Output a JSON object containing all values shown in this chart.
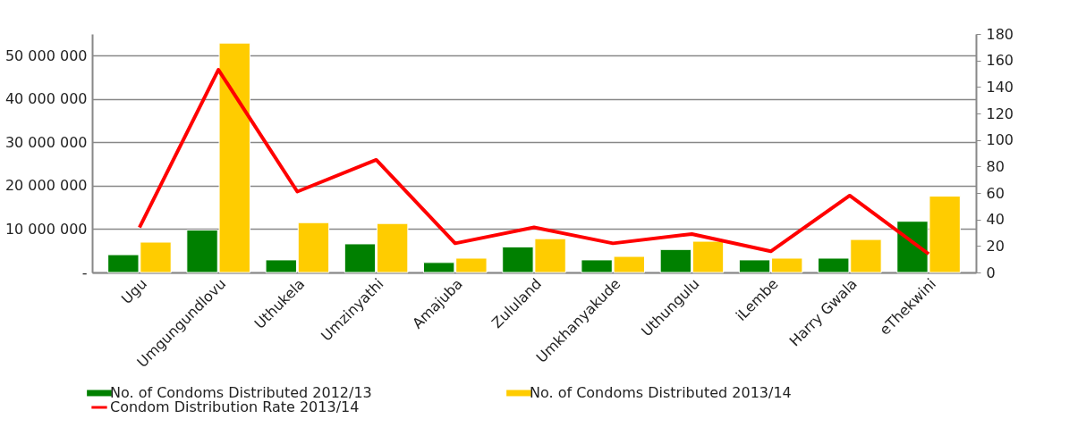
{
  "chart_data": {
    "type": "bar",
    "categories": [
      "Ugu",
      "Umgungundlovu",
      "Uthukela",
      "Umzinyathi",
      "Amajuba",
      "Zululand",
      "Umkhanyakude",
      "Uthungulu",
      "iLembe",
      "Harry Gwala",
      "eThekwini"
    ],
    "series": [
      {
        "name": "No. of Condoms Distributed 2012/13",
        "color": "#008000",
        "values": [
          4100000,
          9800000,
          2900000,
          6600000,
          2300000,
          5900000,
          2900000,
          5300000,
          2900000,
          3300000,
          11800000
        ]
      },
      {
        "name": "No. of Condoms Distributed 2013/14",
        "color": "#ffcc00",
        "values": [
          7000000,
          52900000,
          11500000,
          11300000,
          3300000,
          7800000,
          3700000,
          7200000,
          3300000,
          7600000,
          17600000
        ]
      },
      {
        "name": "Condom Distribution Rate 2013/14",
        "color": "#ff0000",
        "type": "line",
        "axis": "y2",
        "values": [
          34,
          153,
          61,
          85,
          22,
          34,
          22,
          29,
          16,
          58,
          14
        ]
      }
    ],
    "ylim": [
      0,
      55000000
    ],
    "yticks": [
      {
        "value": 0,
        "label": "-"
      },
      {
        "value": 10000000,
        "label": "10 000 000"
      },
      {
        "value": 20000000,
        "label": "20 000 000"
      },
      {
        "value": 30000000,
        "label": "30 000 000"
      },
      {
        "value": 40000000,
        "label": "40 000 000"
      },
      {
        "value": 50000000,
        "label": "50 000 000"
      }
    ],
    "y2lim": [
      0,
      180
    ],
    "y2ticks": [
      0,
      20,
      40,
      60,
      80,
      100,
      120,
      140,
      160,
      180
    ],
    "grid": "y",
    "legend": "bottom"
  }
}
